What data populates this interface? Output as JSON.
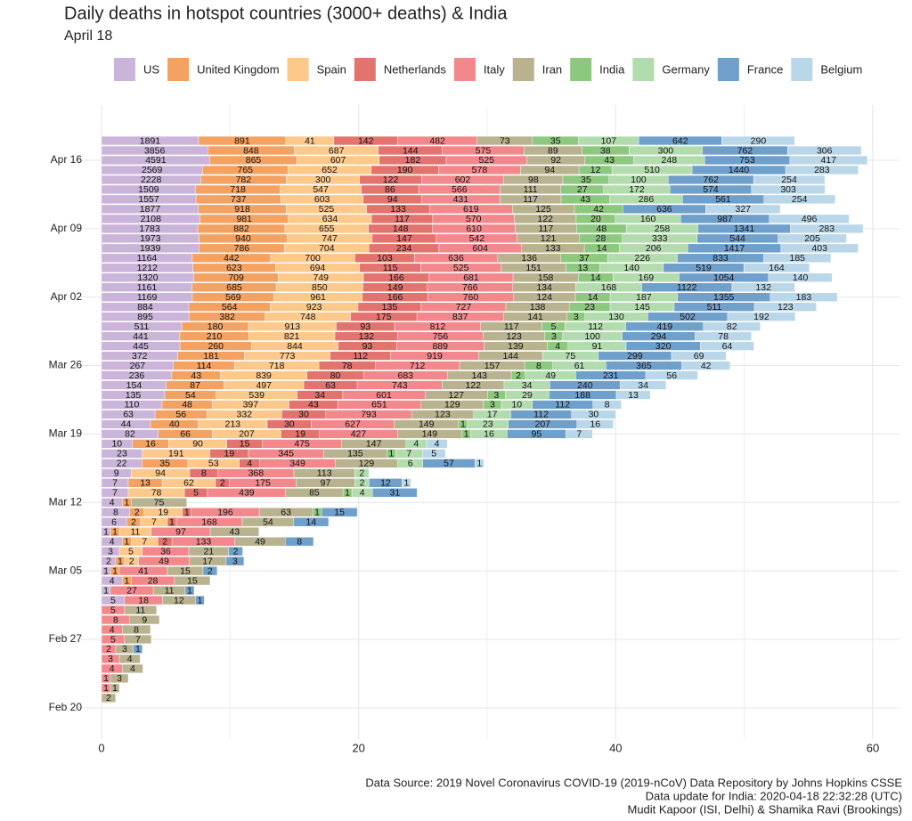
{
  "chart_data": {
    "type": "stacked-bar-horizontal",
    "title": "Daily deaths in hotspot countries (3000+ deaths) & India",
    "subtitle": "April 18",
    "footer": [
      "Data Source: 2019 Novel Coronavirus COVID-19 (2019-nCoV) Data Repository by Johns Hopkins CSSE",
      "Data update for India: 2020-04-18 22:32:28 (UTC)",
      "Mudit Kapoor (ISI, Delhi) & Shamika Ravi (Brookings)"
    ],
    "x_scale": "log1p",
    "xlim": [
      -2.08,
      62.08
    ],
    "xticks": [
      0,
      20,
      40,
      60
    ],
    "grid": true,
    "legend": "top",
    "categories": [
      null,
      null,
      "Apr 16",
      null,
      null,
      null,
      null,
      null,
      null,
      "Apr 09",
      null,
      null,
      null,
      null,
      null,
      null,
      "Apr 02",
      null,
      null,
      null,
      null,
      null,
      null,
      "Mar 26",
      null,
      null,
      null,
      null,
      null,
      null,
      "Mar 19",
      null,
      null,
      null,
      null,
      null,
      null,
      "Mar 12",
      null,
      null,
      null,
      null,
      null,
      null,
      "Mar 05",
      null,
      null,
      null,
      null,
      null,
      null,
      "Feb 27",
      null,
      null,
      null,
      null,
      null,
      null,
      "Feb 20"
    ],
    "series": [
      {
        "name": "US",
        "color": "#cbb4d9",
        "values": [
          1891,
          3856,
          4591,
          2569,
          2228,
          1509,
          1557,
          1877,
          2108,
          1783,
          1973,
          1939,
          1164,
          1212,
          1320,
          1161,
          1169,
          884,
          895,
          511,
          441,
          445,
          372,
          267,
          236,
          154,
          135,
          110,
          63,
          44,
          82,
          10,
          23,
          22,
          9,
          7,
          7,
          4,
          8,
          6,
          1,
          4,
          3,
          2,
          1,
          4,
          1,
          5,
          null,
          null,
          null,
          null,
          null,
          null,
          null,
          null,
          null,
          null,
          null
        ]
      },
      {
        "name": "United Kingdom",
        "color": "#f4a262",
        "values": [
          891,
          848,
          865,
          765,
          782,
          718,
          737,
          918,
          981,
          882,
          940,
          786,
          442,
          623,
          709,
          685,
          569,
          564,
          382,
          180,
          210,
          260,
          181,
          114,
          43,
          87,
          54,
          48,
          56,
          40,
          66,
          16,
          null,
          35,
          null,
          13,
          null,
          1,
          2,
          2,
          1,
          1,
          null,
          1,
          1,
          1,
          null,
          null,
          null,
          null,
          null,
          null,
          null,
          null,
          null,
          null,
          null,
          null,
          null
        ]
      },
      {
        "name": "Spain",
        "color": "#fdc98b",
        "values": [
          41,
          687,
          607,
          652,
          300,
          547,
          603,
          525,
          634,
          655,
          747,
          704,
          700,
          694,
          749,
          850,
          961,
          923,
          748,
          913,
          821,
          844,
          773,
          718,
          839,
          497,
          539,
          397,
          332,
          213,
          207,
          90,
          191,
          53,
          94,
          62,
          78,
          null,
          19,
          7,
          11,
          7,
          5,
          2,
          null,
          null,
          null,
          null,
          null,
          null,
          null,
          null,
          null,
          null,
          null,
          null,
          null,
          null,
          null
        ]
      },
      {
        "name": "Netherlands",
        "color": "#e3736e",
        "values": [
          142,
          144,
          182,
          190,
          122,
          86,
          94,
          133,
          117,
          148,
          147,
          234,
          103,
          115,
          166,
          149,
          166,
          135,
          175,
          93,
          132,
          93,
          112,
          78,
          80,
          63,
          34,
          43,
          30,
          30,
          19,
          15,
          19,
          4,
          8,
          2,
          5,
          null,
          1,
          1,
          null,
          2,
          null,
          null,
          null,
          null,
          null,
          null,
          null,
          null,
          null,
          null,
          null,
          null,
          null,
          null,
          null,
          null,
          null
        ]
      },
      {
        "name": "Italy",
        "color": "#f2888c",
        "values": [
          482,
          575,
          525,
          578,
          602,
          566,
          431,
          619,
          570,
          610,
          542,
          604,
          636,
          525,
          681,
          766,
          760,
          727,
          837,
          812,
          756,
          889,
          919,
          712,
          683,
          743,
          601,
          651,
          793,
          627,
          427,
          475,
          345,
          349,
          368,
          175,
          439,
          null,
          196,
          168,
          97,
          133,
          36,
          49,
          41,
          28,
          27,
          18,
          5,
          8,
          4,
          5,
          2,
          3,
          4,
          1,
          1,
          null,
          null
        ]
      },
      {
        "name": "Iran",
        "color": "#b8b28e",
        "values": [
          73,
          89,
          92,
          94,
          98,
          111,
          117,
          125,
          122,
          117,
          121,
          133,
          136,
          151,
          158,
          134,
          124,
          138,
          141,
          117,
          123,
          139,
          144,
          157,
          143,
          122,
          127,
          129,
          123,
          149,
          149,
          147,
          135,
          129,
          113,
          97,
          85,
          75,
          63,
          54,
          43,
          49,
          21,
          17,
          15,
          15,
          11,
          12,
          11,
          9,
          8,
          7,
          3,
          4,
          4,
          3,
          1,
          2,
          null
        ]
      },
      {
        "name": "India",
        "color": "#8dc87f",
        "values": [
          35,
          38,
          43,
          12,
          35,
          27,
          43,
          42,
          20,
          48,
          28,
          14,
          37,
          13,
          14,
          null,
          14,
          23,
          3,
          5,
          3,
          4,
          null,
          8,
          2,
          null,
          3,
          3,
          null,
          1,
          1,
          null,
          1,
          null,
          null,
          null,
          1,
          null,
          1,
          null,
          null,
          null,
          null,
          null,
          null,
          null,
          null,
          null,
          null,
          null,
          null,
          null,
          null,
          null,
          null,
          null,
          null,
          null,
          null
        ]
      },
      {
        "name": "Germany",
        "color": "#b3dcae",
        "values": [
          107,
          300,
          248,
          510,
          100,
          172,
          286,
          null,
          160,
          258,
          333,
          206,
          226,
          140,
          169,
          168,
          187,
          145,
          130,
          112,
          100,
          91,
          75,
          61,
          49,
          34,
          29,
          10,
          17,
          23,
          16,
          4,
          7,
          6,
          2,
          2,
          4,
          null,
          null,
          null,
          null,
          null,
          null,
          null,
          null,
          null,
          null,
          null,
          null,
          null,
          null,
          null,
          null,
          null,
          null,
          null,
          null,
          null,
          null
        ]
      },
      {
        "name": "France",
        "color": "#6f9fcb",
        "values": [
          642,
          762,
          753,
          1440,
          762,
          574,
          561,
          636,
          987,
          1341,
          544,
          1417,
          833,
          519,
          1054,
          1122,
          1355,
          511,
          502,
          419,
          294,
          320,
          299,
          365,
          231,
          240,
          188,
          112,
          112,
          207,
          95,
          null,
          null,
          57,
          null,
          12,
          31,
          null,
          15,
          14,
          null,
          8,
          2,
          3,
          2,
          null,
          1,
          1,
          null,
          null,
          null,
          null,
          1,
          null,
          null,
          null,
          null,
          null,
          null
        ]
      },
      {
        "name": "Belgium",
        "color": "#bad7e9",
        "values": [
          290,
          306,
          417,
          283,
          254,
          303,
          254,
          327,
          496,
          283,
          205,
          403,
          185,
          164,
          140,
          132,
          183,
          123,
          192,
          82,
          78,
          64,
          69,
          42,
          56,
          34,
          13,
          8,
          30,
          16,
          7,
          4,
          5,
          1,
          null,
          1,
          null,
          null,
          null,
          null,
          null,
          null,
          null,
          null,
          null,
          null,
          null,
          null,
          null,
          null,
          null,
          null,
          null,
          null,
          null,
          null,
          null,
          null,
          null
        ]
      }
    ]
  }
}
